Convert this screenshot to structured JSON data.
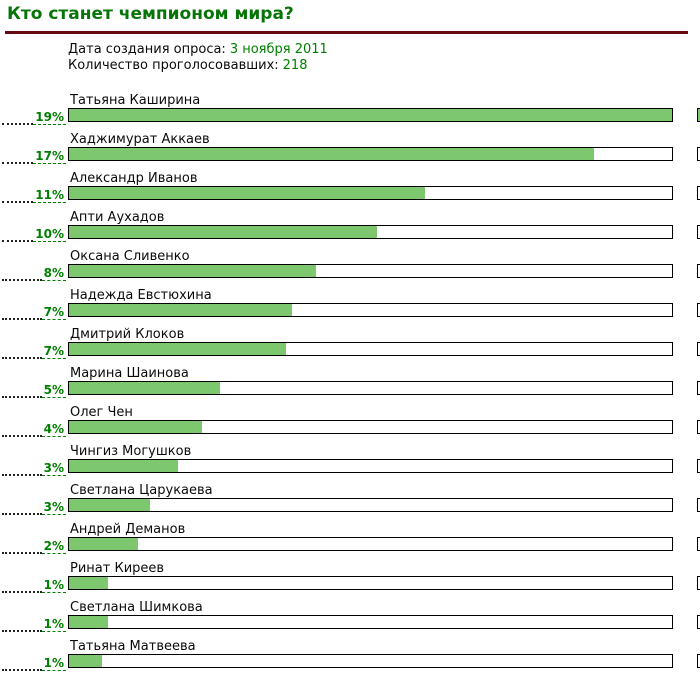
{
  "page_title": "Кто станет чемпионом мира?",
  "meta": {
    "date_label": "Дата создания опроса:",
    "date_value": "3 ноября 2011",
    "voters_label": "Количество проголосовавших:",
    "voters_value": "218"
  },
  "colors": {
    "title_green": "#077407",
    "value_green": "#008000",
    "divider_maroon": "#660a10",
    "bar_fill": "#7dc86e",
    "bar_border": "#000000",
    "leader_dots": "#222222"
  },
  "chart_data": {
    "type": "bar",
    "orientation": "horizontal",
    "title": "Кто станет чемпионом мира?",
    "subtitle_date": "3 ноября 2011",
    "total_votes": 218,
    "value_suffix": "%",
    "max_value": 19,
    "scale_note": "green fill width is relative to the leading result (19% = full bar)",
    "legend_position": "none",
    "grid": false,
    "categories": [
      "Татьяна Каширина",
      "Хаджимурат Аккаев",
      "Александр Иванов",
      "Апти Аухадов",
      "Оксана Сливенко",
      "Надежда Евстюхина",
      "Дмитрий Клоков",
      "Марина Шаинова",
      "Олег Чен",
      "Чингиз Могушков",
      "Светлана Царукаева",
      "Андрей Деманов",
      "Ринат Киреев",
      "Светлана Шимкова",
      "Татьяна Матвеева"
    ],
    "values": [
      19,
      17,
      11,
      10,
      8,
      7,
      7,
      5,
      4,
      3,
      3,
      2,
      1,
      1,
      1
    ],
    "rows": [
      {
        "name": "Татьяна Каширина",
        "value": 19,
        "label": "19%",
        "fill_pct": 100,
        "edge_sliver_filled": true
      },
      {
        "name": "Хаджимурат Аккаев",
        "value": 17,
        "label": "17%",
        "fill_pct": 87,
        "edge_sliver_filled": false
      },
      {
        "name": "Александр Иванов",
        "value": 11,
        "label": "11%",
        "fill_pct": 59,
        "edge_sliver_filled": false
      },
      {
        "name": "Апти Аухадов",
        "value": 10,
        "label": "10%",
        "fill_pct": 51,
        "edge_sliver_filled": false
      },
      {
        "name": "Оксана Сливенко",
        "value": 8,
        "label": "8%",
        "fill_pct": 41,
        "edge_sliver_filled": false
      },
      {
        "name": "Надежда Евстюхина",
        "value": 7,
        "label": "7%",
        "fill_pct": 37,
        "edge_sliver_filled": false
      },
      {
        "name": "Дмитрий Клоков",
        "value": 7,
        "label": "7%",
        "fill_pct": 36,
        "edge_sliver_filled": false
      },
      {
        "name": "Марина Шаинова",
        "value": 5,
        "label": "5%",
        "fill_pct": 25,
        "edge_sliver_filled": false
      },
      {
        "name": "Олег Чен",
        "value": 4,
        "label": "4%",
        "fill_pct": 22,
        "edge_sliver_filled": false
      },
      {
        "name": "Чингиз Могушков",
        "value": 3,
        "label": "3%",
        "fill_pct": 18,
        "edge_sliver_filled": false
      },
      {
        "name": "Светлана Царукаева",
        "value": 3,
        "label": "3%",
        "fill_pct": 13.5,
        "edge_sliver_filled": false
      },
      {
        "name": "Андрей Деманов",
        "value": 2,
        "label": "2%",
        "fill_pct": 11.5,
        "edge_sliver_filled": false
      },
      {
        "name": "Ринат Киреев",
        "value": 1,
        "label": "1%",
        "fill_pct": 6.4,
        "edge_sliver_filled": false
      },
      {
        "name": "Светлана Шимкова",
        "value": 1,
        "label": "1%",
        "fill_pct": 6.4,
        "edge_sliver_filled": false
      },
      {
        "name": "Татьяна Матвеева",
        "value": 1,
        "label": "1%",
        "fill_pct": 5.4,
        "edge_sliver_filled": false
      }
    ]
  }
}
